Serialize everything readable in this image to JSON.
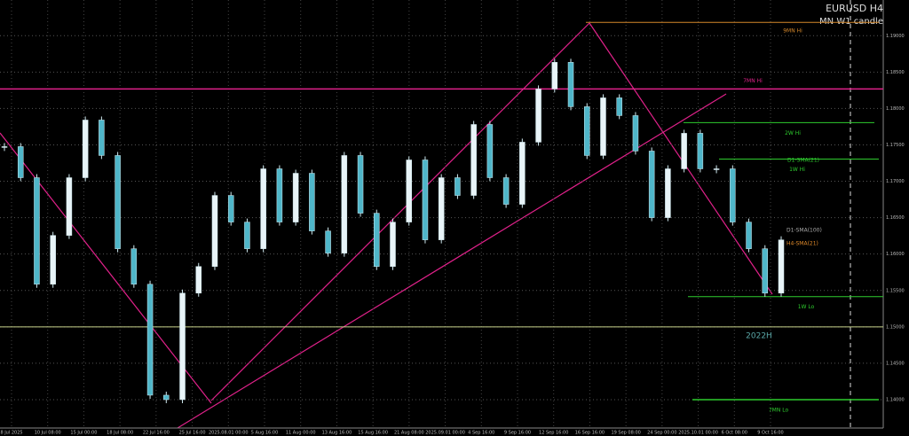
{
  "chart_data": {
    "type": "candlestick",
    "title": "EURUSD H4",
    "subtitle": "MN W1 candle",
    "up_color": "#e8f4f8",
    "down_color": "#4fb6c9",
    "values": [
      1.17476,
      1.17049,
      1.15585,
      1.16256,
      1.17049,
      1.17841,
      1.17354,
      1.16073,
      1.15585,
      1.14061,
      1.14,
      1.15463,
      1.15829,
      1.16805,
      1.16439,
      1.16073,
      1.17171,
      1.16439,
      1.1711,
      1.16317,
      1.16012,
      1.17354,
      1.16561,
      1.15829,
      1.16439,
      1.17293,
      1.16195,
      1.17049,
      1.16805,
      1.1778,
      1.17049,
      1.16683,
      1.17537,
      1.18268,
      1.18634,
      1.18024,
      1.17354,
      1.18146,
      1.17902,
      1.17415,
      1.165,
      1.17171,
      1.17659,
      1.17171,
      1.17171,
      1.16439,
      1.16073,
      1.15463,
      1.16195
    ],
    "ylim": [
      1.1361,
      1.1949
    ],
    "yticks": [
      {
        "value": 1.14,
        "label": "1.14000"
      },
      {
        "value": 1.145,
        "label": "1.14500"
      },
      {
        "value": 1.15,
        "label": "1.15000"
      },
      {
        "value": 1.155,
        "label": "1.15500"
      },
      {
        "value": 1.16,
        "label": "1.16000"
      },
      {
        "value": 1.165,
        "label": "1.16500"
      },
      {
        "value": 1.17,
        "label": "1.17000"
      },
      {
        "value": 1.175,
        "label": "1.17500"
      },
      {
        "value": 1.18,
        "label": "1.18000"
      },
      {
        "value": 1.185,
        "label": "1.18500"
      },
      {
        "value": 1.19,
        "label": "1.19000"
      }
    ],
    "x_labels": [
      "8 Jul 2025",
      "10 Jul 08:00",
      "15 Jul 00:00",
      "18 Jul 08:00",
      "22 Jul 16:00",
      "25 Jul 16:00",
      "2025.08.01 00:00",
      "5 Aug 16:00",
      "11 Aug 00:00",
      "13 Aug 16:00",
      "15 Aug 16:00",
      "21 Aug 08:00",
      "2025.09.01 00:00",
      "4 Sep 16:00",
      "9 Sep 16:00",
      "12 Sep 16:00",
      "16 Sep 16:00",
      "19 Sep 08:00",
      "24 Sep 00:00",
      "2025.10.01 00:00",
      "6 Oct 08:00",
      "9 Oct 16:00"
    ],
    "levels": [
      {
        "name": "9MN Hi",
        "value": 1.19183,
        "color": "#d4872a"
      },
      {
        "name": "7MN Hi",
        "value": 1.18268,
        "color": "#e0218a"
      },
      {
        "name": "2W Hi",
        "value": 1.17805,
        "color": "#2ecc2e"
      },
      {
        "name": "1W Hi",
        "value": 1.17305,
        "color": "#2ecc2e"
      },
      {
        "name": "1W Lo",
        "value": 1.15415,
        "color": "#2ecc2e"
      },
      {
        "name": "2022H",
        "value": 1.15,
        "color": "#c8d28a"
      },
      {
        "name": "7MN Lo",
        "value": 1.14,
        "color": "#2ecc2e"
      }
    ],
    "annotations": [
      "D1-SMA(21)",
      "D1-SMA(100)",
      "H4-SMA(21)"
    ]
  }
}
